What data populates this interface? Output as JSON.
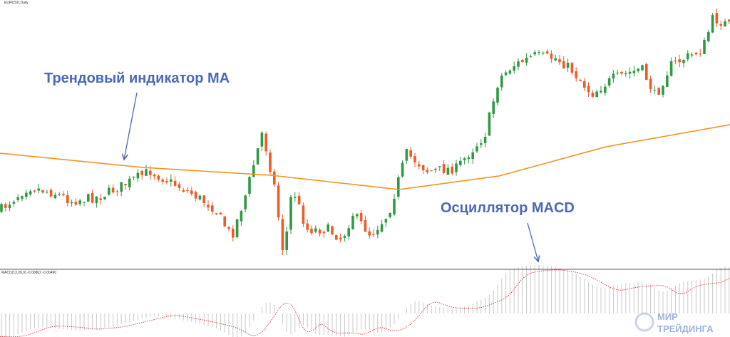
{
  "window": {
    "symbol_label": "EURUSD,Daily",
    "indicator_label": "MACD(12,26,9) -0.00862 -0.00490"
  },
  "annotations": [
    {
      "text": "Трендовый индикатор MA"
    },
    {
      "text": "Осциллятор MACD"
    }
  ],
  "logo": {
    "line1": "МИР",
    "line2": "ТРЕЙДИНГА"
  }
}
